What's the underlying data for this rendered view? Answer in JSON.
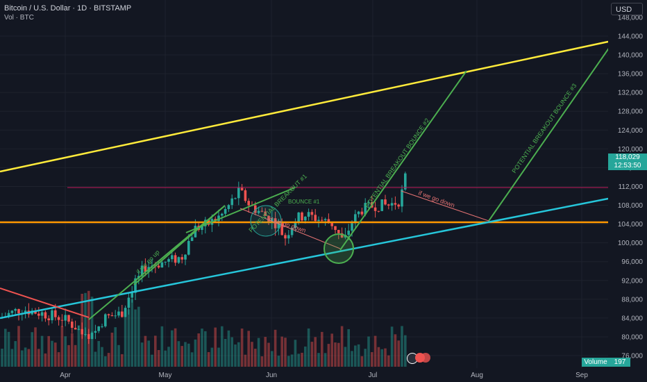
{
  "header": {
    "title": "Bitcoin / U.S. Dollar · 1D · BITSTAMP",
    "volume_label": "Vol · BTC"
  },
  "currency_button": "USD",
  "last_price": {
    "value": "118,029",
    "countdown": "12:53:50"
  },
  "volume_tag": {
    "label": "Volume",
    "value": "197"
  },
  "colors": {
    "background": "#131722",
    "up": "#26a69a",
    "down": "#ef5350",
    "yellow_line": "#ffeb3b",
    "orange_line": "#ff9800",
    "cyan_line": "#26c6da",
    "green_annotation": "#4caf50",
    "red_annotation": "#e57373"
  },
  "chart_data": {
    "type": "candlestick",
    "y_ticks": [
      "144,000",
      "140,000",
      "136,000",
      "132,000",
      "128,000",
      "124,000",
      "120,000",
      "116,000",
      "112,000",
      "108,000",
      "104,000",
      "100,000",
      "96,000",
      "92,000",
      "88,000",
      "84,000",
      "80,000",
      "76,000"
    ],
    "x_labels": [
      "Apr",
      "May",
      "Jun",
      "Jul",
      "Aug",
      "Sep"
    ],
    "ylim": [
      74000,
      148000
    ],
    "annotations": [
      "if we go up",
      "POTENTIAL BREAKOUT #1",
      "BOUNCE #1",
      "POTENTIAL BREAKOUT BOUNCE #2",
      "POTENTIAL BREAKOUT BOUNCE #3",
      "if we go down",
      "if we go down"
    ]
  }
}
